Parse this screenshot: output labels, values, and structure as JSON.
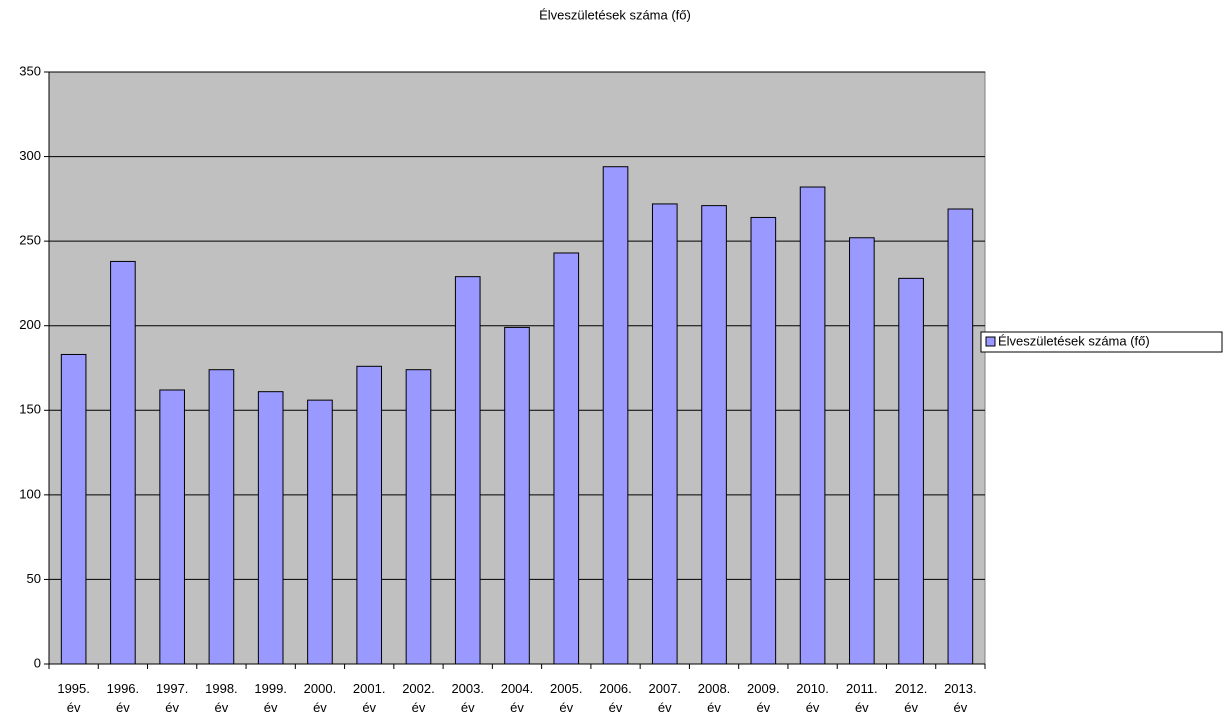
{
  "chart_data": {
    "type": "bar",
    "title": "Élveszületések száma (fő)",
    "categories": [
      "1995. év",
      "1996. év",
      "1997. év",
      "1998. év",
      "1999. év",
      "2000. év",
      "2001. év",
      "2002. év",
      "2003. év",
      "2004. év",
      "2005. év",
      "2006. év",
      "2007. év",
      "2008. év",
      "2009. év",
      "2010. év",
      "2011. év",
      "2012. év",
      "2013. év"
    ],
    "series": [
      {
        "name": "Élveszületések száma (fő)",
        "color": "#9999ff",
        "values": [
          183,
          238,
          162,
          174,
          161,
          156,
          176,
          174,
          229,
          199,
          243,
          294,
          272,
          271,
          264,
          282,
          252,
          228,
          269
        ]
      }
    ],
    "ylim": [
      0,
      350
    ],
    "yticks": [
      0,
      50,
      100,
      150,
      200,
      250,
      300,
      350
    ],
    "grid": true,
    "legend": "right"
  }
}
